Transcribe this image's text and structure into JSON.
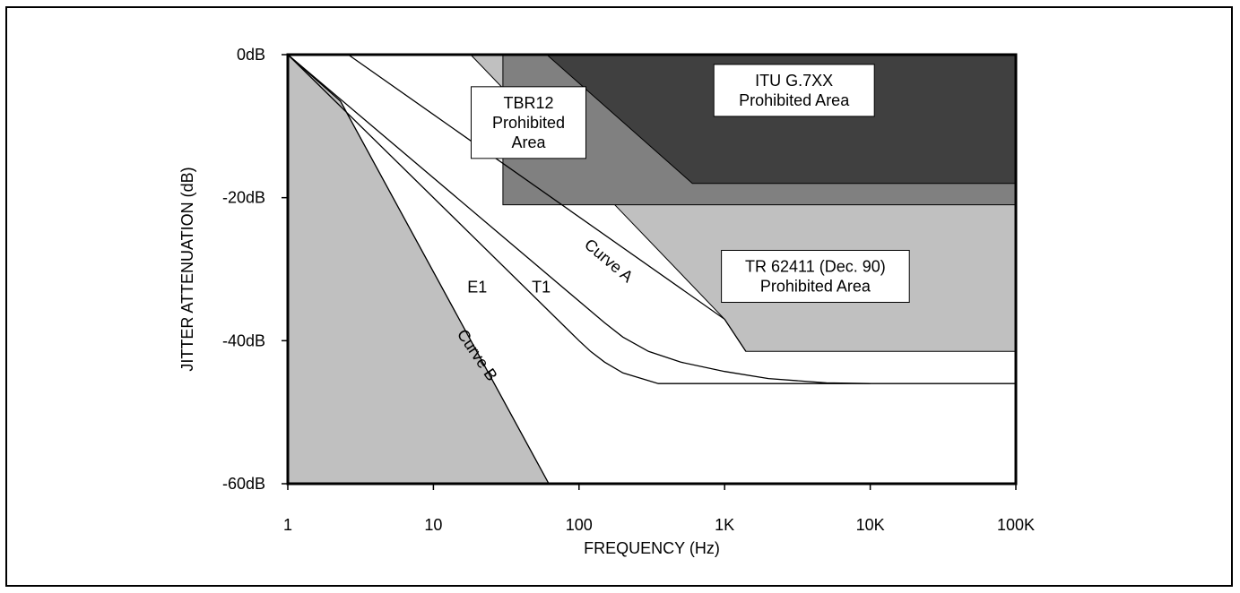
{
  "chart_data": {
    "type": "line",
    "xscale": "log",
    "xlim": [
      1,
      100000
    ],
    "ylim": [
      -60,
      0
    ],
    "xlabel": "FREQUENCY (Hz)",
    "ylabel": "JITTER ATTENUATION (dB)",
    "x_tick_values": [
      1,
      10,
      100,
      1000,
      10000,
      100000
    ],
    "x_tick_labels": [
      "1",
      "10",
      "100",
      "1K",
      "10K",
      "100K"
    ],
    "y_tick_values": [
      0,
      -20,
      -40,
      -60
    ],
    "y_tick_labels": [
      "0dB",
      "-20dB",
      "-40dB",
      "-60dB"
    ],
    "grid": false,
    "colors": {
      "tr62411_area": "#c0c0c0",
      "curve_b_area": "#c0c0c0",
      "tbr12_area": "#808080",
      "itu_area": "#404040",
      "line": "#000000",
      "label_box": "#ffffff"
    },
    "regions": [
      {
        "id": "tr62411",
        "fill": "tr62411_area",
        "points": [
          [
            18,
            0
          ],
          [
            1000,
            -37
          ],
          [
            1400,
            -41.5
          ],
          [
            100000,
            -41.5
          ],
          [
            100000,
            0
          ]
        ]
      },
      {
        "id": "curve_b",
        "fill": "curve_b_area",
        "points": [
          [
            1,
            0
          ],
          [
            2.3,
            -6.5
          ],
          [
            62,
            -61.5
          ],
          [
            1,
            -61.5
          ]
        ]
      },
      {
        "id": "tbr12",
        "fill": "tbr12_area",
        "points": [
          [
            30,
            0
          ],
          [
            30,
            -21
          ],
          [
            100000,
            -21
          ],
          [
            100000,
            0
          ]
        ]
      },
      {
        "id": "itu",
        "fill": "itu_area",
        "points": [
          [
            60,
            0
          ],
          [
            600,
            -18
          ],
          [
            100000,
            -18
          ],
          [
            100000,
            0
          ]
        ]
      }
    ],
    "series": [
      {
        "name": "Curve A",
        "points": [
          [
            1,
            0
          ],
          [
            2.3,
            -6.5
          ],
          [
            62,
            -61.5
          ]
        ]
      },
      {
        "name": "E1",
        "points": [
          [
            1,
            0
          ],
          [
            100,
            -40
          ],
          [
            120,
            -41.5
          ],
          [
            150,
            -43
          ],
          [
            200,
            -44.5
          ],
          [
            350,
            -46
          ],
          [
            100000,
            -46
          ]
        ]
      },
      {
        "name": "T1",
        "points": [
          [
            1,
            0
          ],
          [
            150,
            -37.5
          ],
          [
            200,
            -39.5
          ],
          [
            300,
            -41.5
          ],
          [
            500,
            -43
          ],
          [
            1000,
            -44.3
          ],
          [
            2000,
            -45.3
          ],
          [
            5000,
            -45.9
          ],
          [
            10000,
            -46
          ]
        ]
      },
      {
        "name": "Curve A",
        "points": [
          [
            2.6,
            0
          ],
          [
            1000,
            -37
          ],
          [
            1400,
            -41.5
          ]
        ]
      }
    ],
    "annotations": [
      {
        "id": "itu",
        "lines": [
          "ITU G.7XX",
          "Prohibited Area"
        ],
        "x": 3000,
        "y": -5
      },
      {
        "id": "tbr12",
        "lines": [
          "TBR12",
          "Prohibited",
          "Area"
        ],
        "x": 45,
        "y": -9.5
      },
      {
        "id": "tr62411",
        "lines": [
          "TR 62411 (Dec. 90)",
          "Prohibited Area"
        ],
        "x": 4200,
        "y": -31
      },
      {
        "id": "curve_a",
        "lines": [
          "Curve A"
        ],
        "x": 160,
        "y": -28.8,
        "angle": 40
      },
      {
        "id": "curve_b",
        "lines": [
          "Curve B"
        ],
        "x": 20,
        "y": -42,
        "angle": 56
      },
      {
        "id": "e1",
        "lines": [
          "E1"
        ],
        "x": 20,
        "y": -32.5
      },
      {
        "id": "t1",
        "lines": [
          "T1"
        ],
        "x": 55,
        "y": -32.5
      }
    ]
  }
}
